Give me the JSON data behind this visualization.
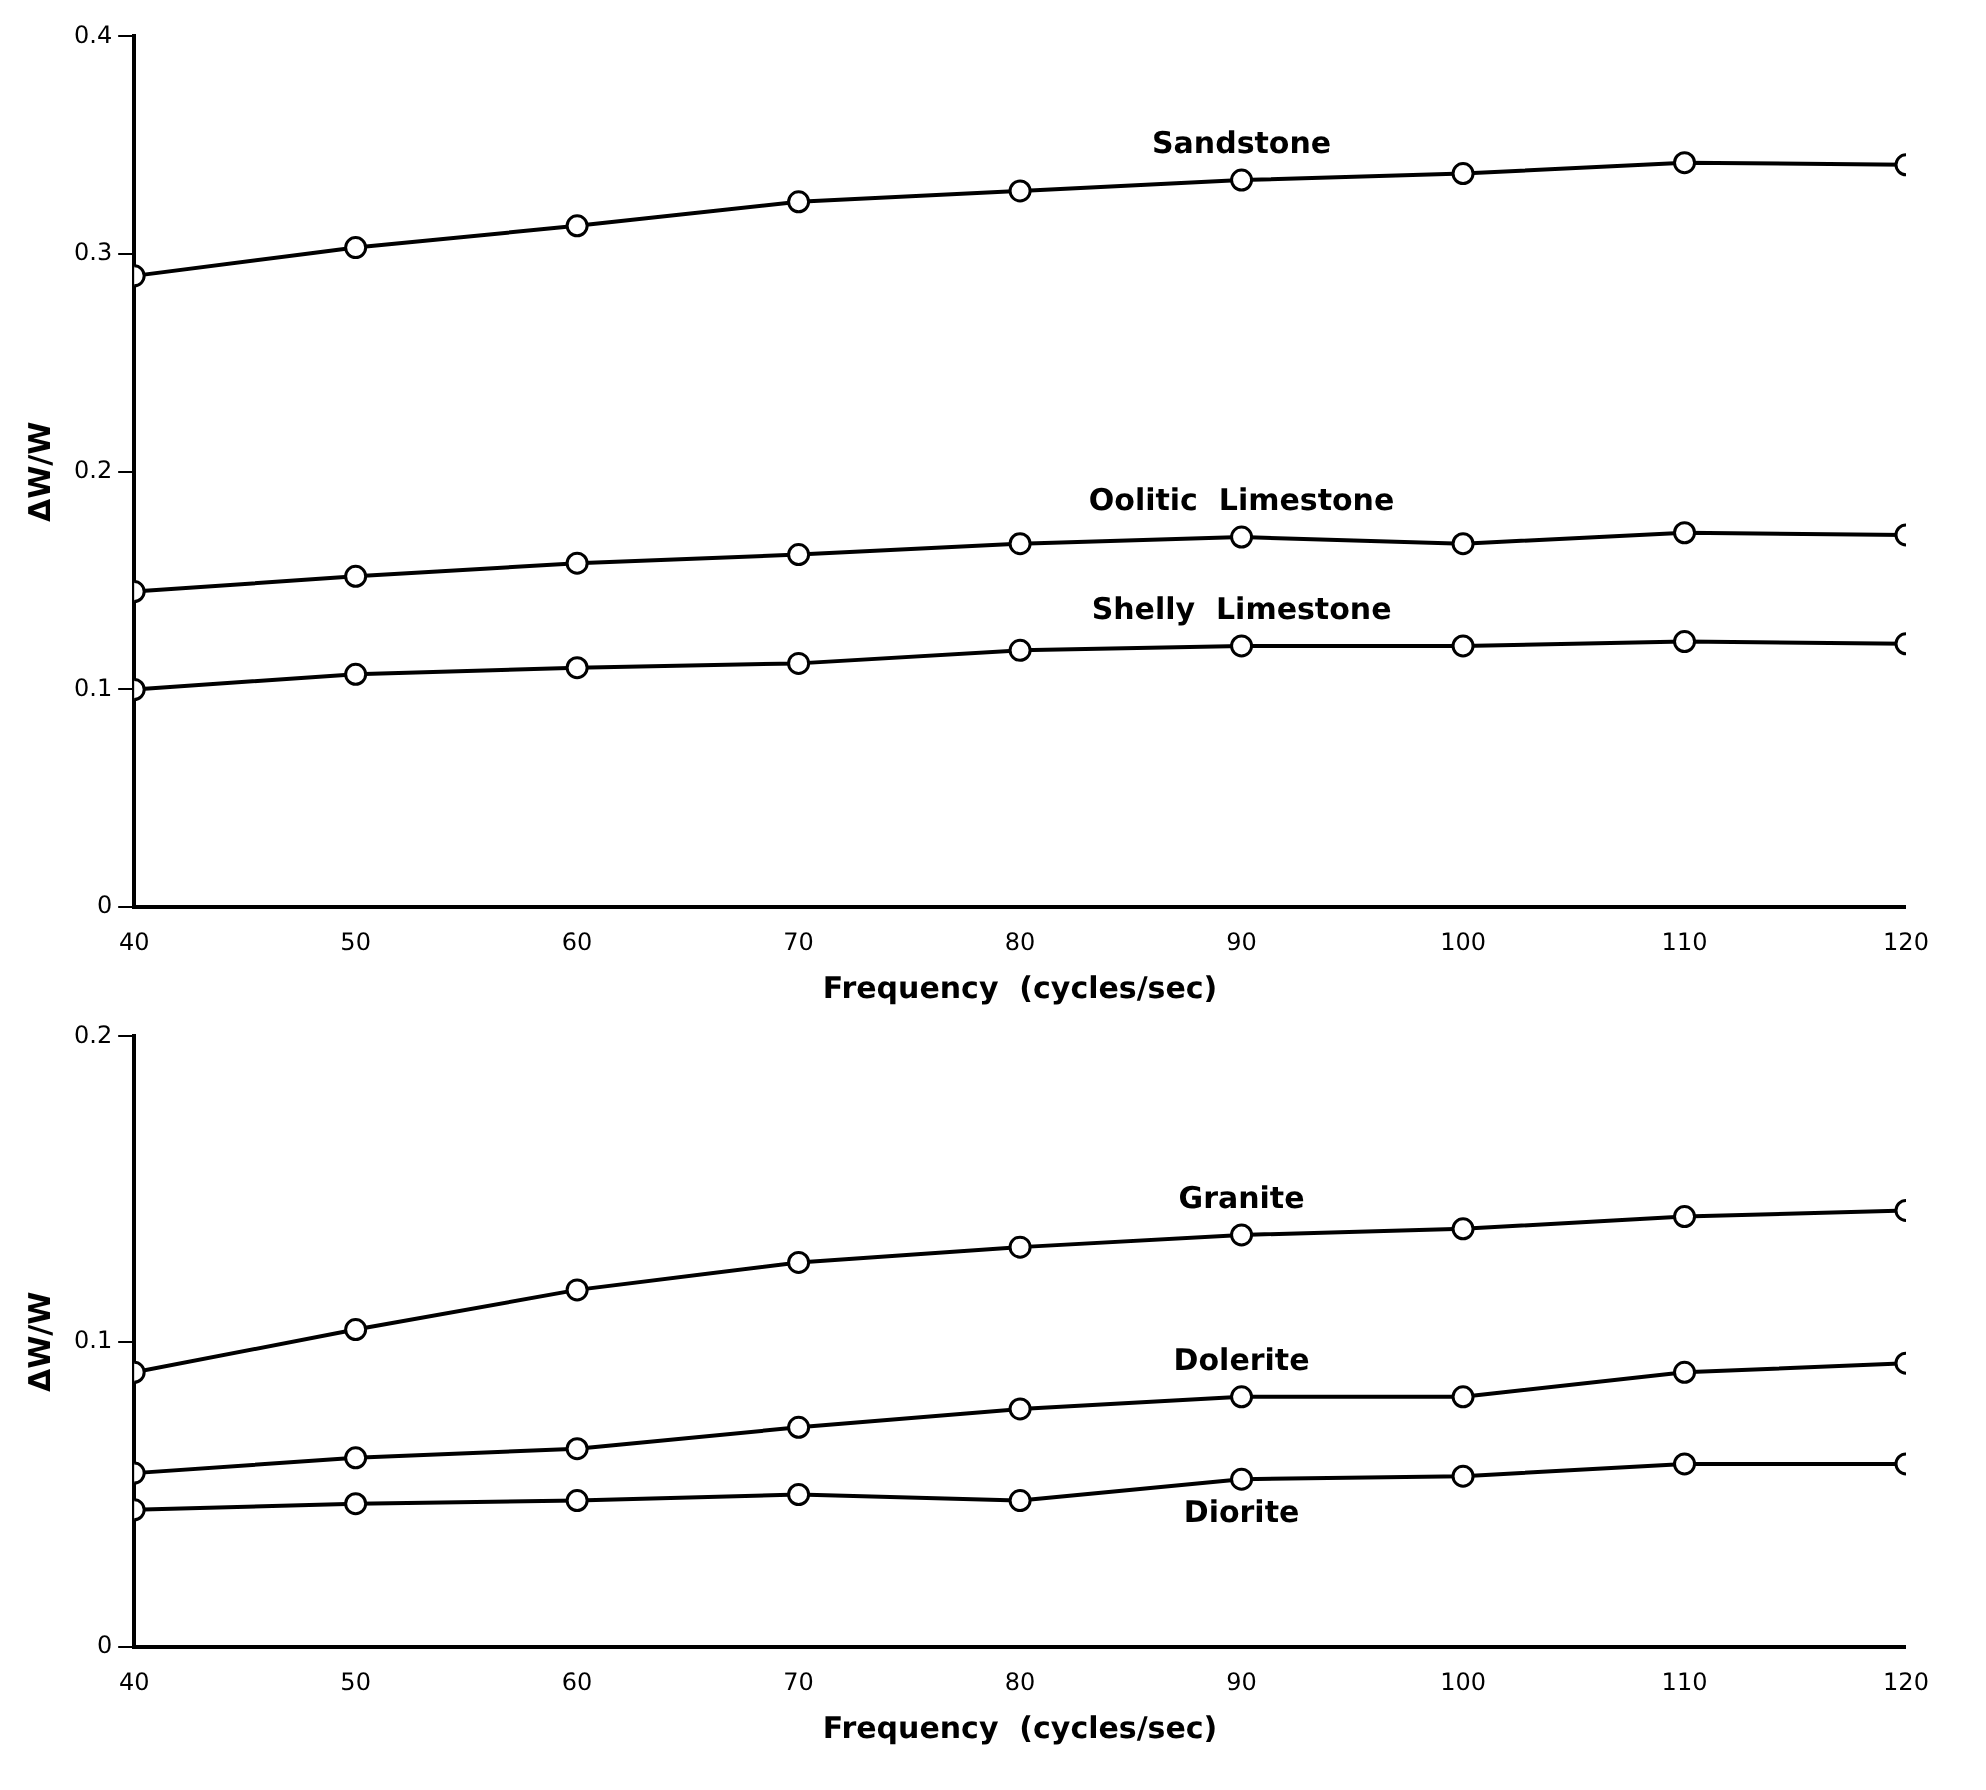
{
  "chart_data": [
    {
      "type": "line",
      "xlabel": "Frequency  (cycles/sec)",
      "ylabel": "ΔW/W",
      "x": [
        40,
        50,
        60,
        70,
        80,
        90,
        100,
        110,
        120
      ],
      "xlim": [
        40,
        120
      ],
      "xticks": [
        40,
        50,
        60,
        70,
        80,
        90,
        100,
        110,
        120
      ],
      "ylim": [
        0,
        0.4
      ],
      "yticks": [
        0,
        0.1,
        0.2,
        0.3,
        0.4
      ],
      "grid": false,
      "legend": false,
      "marker": "circle",
      "line_style": "solid",
      "series": [
        {
          "name": "Sandstone",
          "color": "#000000",
          "values": [
            0.29,
            0.303,
            0.313,
            0.324,
            0.329,
            0.334,
            0.337,
            0.342,
            0.341
          ]
        },
        {
          "name": "Oolitic  Limestone",
          "color": "#000000",
          "values": [
            0.145,
            0.152,
            0.158,
            0.162,
            0.167,
            0.17,
            0.167,
            0.172,
            0.171
          ]
        },
        {
          "name": "Shelly  Limestone",
          "color": "#000000",
          "values": [
            0.1,
            0.107,
            0.11,
            0.112,
            0.118,
            0.12,
            0.12,
            0.122,
            0.121
          ]
        }
      ]
    },
    {
      "type": "line",
      "xlabel": "Frequency  (cycles/sec)",
      "ylabel": "ΔW/W",
      "x": [
        40,
        50,
        60,
        70,
        80,
        90,
        100,
        110,
        120
      ],
      "xlim": [
        40,
        120
      ],
      "xticks": [
        40,
        50,
        60,
        70,
        80,
        90,
        100,
        110,
        120
      ],
      "ylim": [
        0,
        0.2
      ],
      "yticks": [
        0,
        0.1,
        0.2
      ],
      "grid": false,
      "legend": false,
      "marker": "circle",
      "line_style": "solid",
      "series": [
        {
          "name": "Granite",
          "color": "#000000",
          "values": [
            0.09,
            0.104,
            0.117,
            0.126,
            0.131,
            0.135,
            0.137,
            0.141,
            0.143
          ]
        },
        {
          "name": "Dolerite",
          "color": "#000000",
          "values": [
            0.057,
            0.062,
            0.065,
            0.072,
            0.078,
            0.082,
            0.082,
            0.09,
            0.093
          ]
        },
        {
          "name": "Diorite",
          "color": "#000000",
          "values": [
            0.045,
            0.047,
            0.048,
            0.05,
            0.048,
            0.055,
            0.056,
            0.06,
            0.06
          ]
        }
      ]
    }
  ]
}
